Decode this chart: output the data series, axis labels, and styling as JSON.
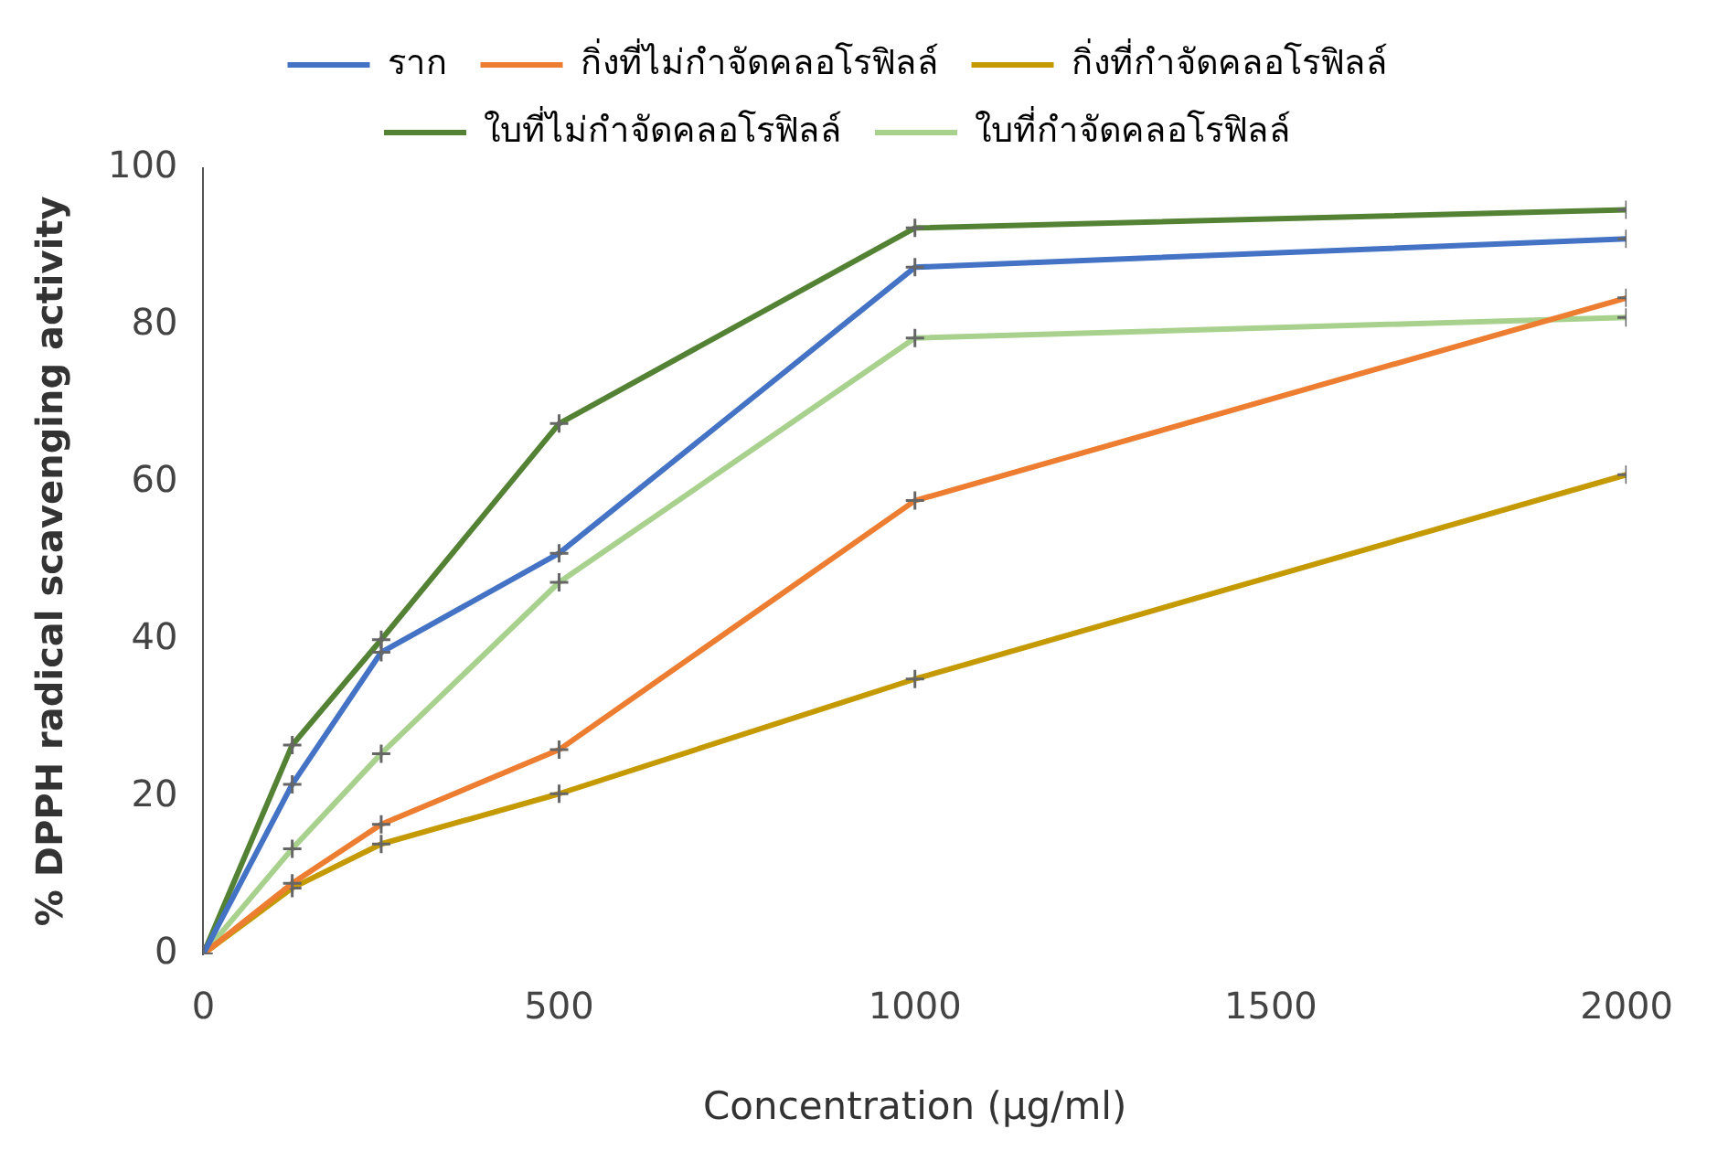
{
  "chart_data": {
    "type": "line",
    "xlabel": "Concentration (µg/ml)",
    "ylabel": "% DPPH radical scavenging activity",
    "x": [
      0,
      125,
      250,
      500,
      1000,
      2000
    ],
    "series": [
      {
        "name": "ราก",
        "color": "#4472c4",
        "values": [
          0,
          21.6,
          38.4,
          51,
          87.4,
          91
        ]
      },
      {
        "name": "กิ่งที่ไม่กำจัดคลอโรฟิลล์",
        "color": "#ed7d31",
        "values": [
          0,
          9,
          16.5,
          26,
          57.7,
          83.5
        ]
      },
      {
        "name": "กิ่งที่กำจัดคลอโรฟิลล์",
        "color": "#c49a00",
        "values": [
          0,
          8.4,
          14,
          20.4,
          35,
          61
        ]
      },
      {
        "name": "ใบที่ไม่กำจัดคลอโรฟิลล์",
        "color": "#548235",
        "values": [
          0,
          26.6,
          40,
          67.5,
          92.4,
          94.7
        ]
      },
      {
        "name": "ใบที่กำจัดคลอโรฟิลล์",
        "color": "#a9d18e",
        "values": [
          0,
          13.4,
          25.5,
          47.3,
          78.4,
          81
        ]
      }
    ],
    "xlim": [
      0,
      2000
    ],
    "xticks": [
      0,
      500,
      1000,
      1500,
      2000
    ],
    "ylim": [
      0,
      100
    ],
    "yticks": [
      0,
      20,
      40,
      60,
      80,
      100
    ],
    "grid": false,
    "legend": "top",
    "marker": "cross",
    "line_style": "solid"
  }
}
